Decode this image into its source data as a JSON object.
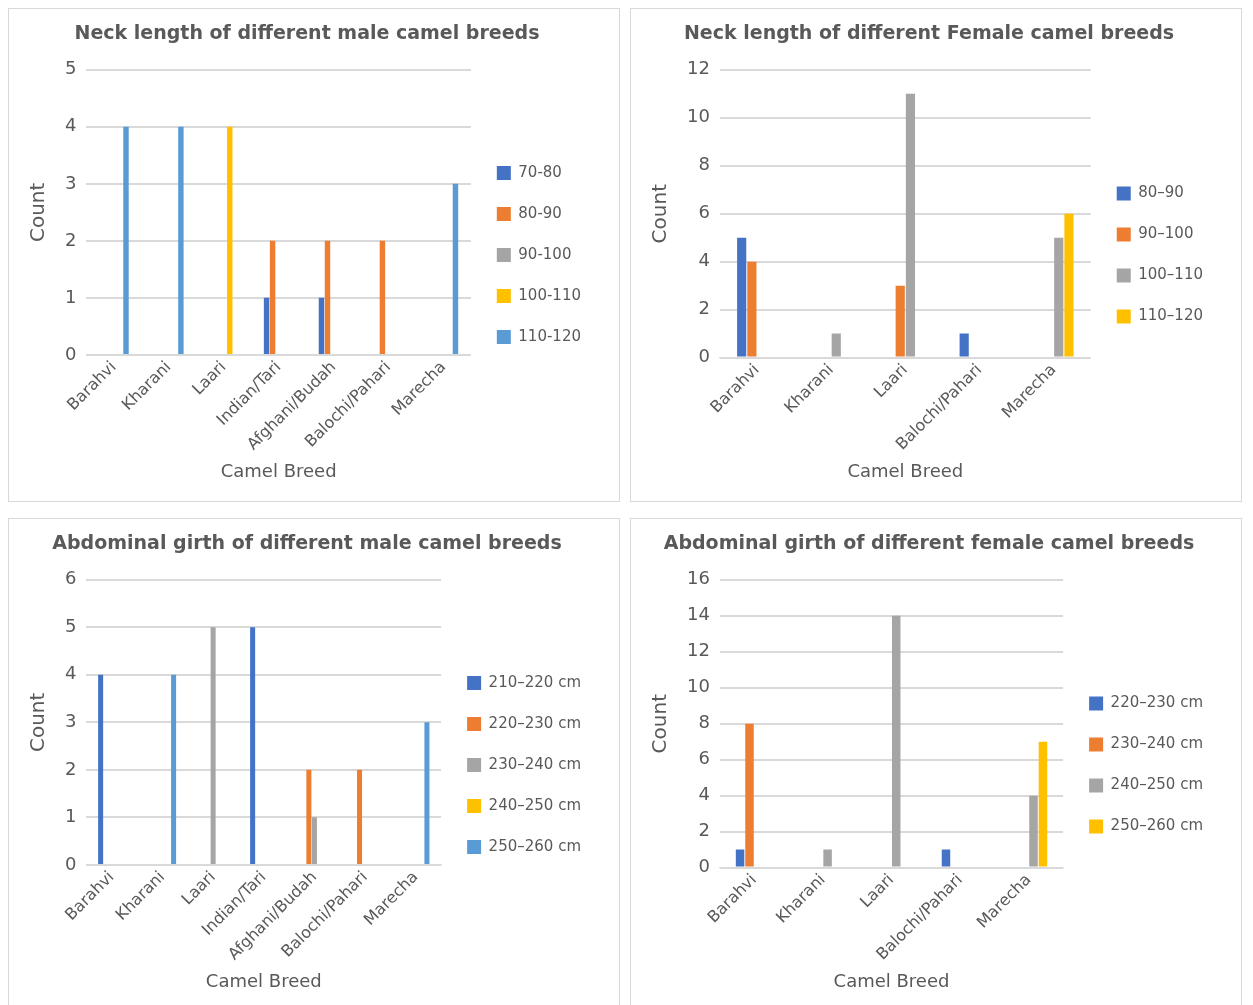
{
  "chart_data": [
    {
      "type": "bar",
      "title": "Neck length of different male camel breeds",
      "xlabel": "Camel Breed",
      "ylabel": "Count",
      "categories": [
        "Barahvi",
        "Kharani",
        "Laari",
        "Indian/Tari",
        "Afghani/Budah",
        "Balochi/Pahari",
        "Marecha"
      ],
      "ylim": [
        0,
        5
      ],
      "yticks": [
        0,
        1,
        2,
        3,
        4,
        5
      ],
      "grid": "y",
      "legend": "right",
      "series": [
        {
          "name": "70-80",
          "color": "#4472c4",
          "values": [
            null,
            null,
            null,
            1,
            1,
            null,
            null
          ]
        },
        {
          "name": "80-90",
          "color": "#ed7d31",
          "values": [
            null,
            null,
            null,
            2,
            2,
            2,
            null
          ]
        },
        {
          "name": "90-100",
          "color": "#a5a5a5",
          "values": [
            null,
            null,
            null,
            null,
            null,
            null,
            null
          ]
        },
        {
          "name": "100-110",
          "color": "#ffc000",
          "values": [
            null,
            null,
            4,
            null,
            null,
            null,
            null
          ]
        },
        {
          "name": "110-120",
          "color": "#5b9bd5",
          "values": [
            4,
            4,
            null,
            null,
            null,
            null,
            3
          ]
        }
      ]
    },
    {
      "type": "bar",
      "title": "Neck length of different Female camel breeds",
      "xlabel": "Camel Breed",
      "ylabel": "Count",
      "categories": [
        "Barahvi",
        "Kharani",
        "Laari",
        "Balochi/Pahari",
        "Marecha"
      ],
      "ylim": [
        0,
        12
      ],
      "yticks": [
        0,
        2,
        4,
        6,
        8,
        10,
        12
      ],
      "grid": "y",
      "legend": "right",
      "series": [
        {
          "name": "80–90",
          "color": "#4472c4",
          "values": [
            5,
            null,
            null,
            1,
            null
          ]
        },
        {
          "name": "90–100",
          "color": "#ed7d31",
          "values": [
            4,
            null,
            3,
            null,
            null
          ]
        },
        {
          "name": "100–110",
          "color": "#a5a5a5",
          "values": [
            null,
            1,
            11,
            null,
            5
          ]
        },
        {
          "name": "110–120",
          "color": "#ffc000",
          "values": [
            null,
            null,
            null,
            null,
            6
          ]
        }
      ]
    },
    {
      "type": "bar",
      "title": "Abdominal girth of different male camel breeds",
      "xlabel": "Camel Breed",
      "ylabel": "Count",
      "categories": [
        "Barahvi",
        "Kharani",
        "Laari",
        "Indian/Tari",
        "Afghani/Budah",
        "Balochi/Pahari",
        "Marecha"
      ],
      "ylim": [
        0,
        6
      ],
      "yticks": [
        0,
        1,
        2,
        3,
        4,
        5,
        6
      ],
      "grid": "y",
      "legend": "right",
      "series": [
        {
          "name": "210–220 cm",
          "color": "#4472c4",
          "values": [
            4,
            null,
            null,
            5,
            null,
            null,
            null
          ]
        },
        {
          "name": "220–230 cm",
          "color": "#ed7d31",
          "values": [
            null,
            null,
            null,
            null,
            2,
            2,
            null
          ]
        },
        {
          "name": "230–240 cm",
          "color": "#a5a5a5",
          "values": [
            null,
            null,
            5,
            null,
            1,
            null,
            null
          ]
        },
        {
          "name": "240–250 cm",
          "color": "#ffc000",
          "values": [
            null,
            null,
            null,
            null,
            null,
            null,
            null
          ]
        },
        {
          "name": "250–260 cm",
          "color": "#5b9bd5",
          "values": [
            null,
            4,
            null,
            null,
            null,
            null,
            3
          ]
        }
      ]
    },
    {
      "type": "bar",
      "title": "Abdominal girth of different female camel breeds",
      "xlabel": "Camel Breed",
      "ylabel": "Count",
      "categories": [
        "Barahvi",
        "Kharani",
        "Laari",
        "Balochi/Pahari",
        "Marecha"
      ],
      "ylim": [
        0,
        16
      ],
      "yticks": [
        0,
        2,
        4,
        6,
        8,
        10,
        12,
        14,
        16
      ],
      "grid": "y",
      "legend": "right",
      "series": [
        {
          "name": "220–230 cm",
          "color": "#4472c4",
          "values": [
            1,
            null,
            null,
            1,
            null
          ]
        },
        {
          "name": "230–240 cm",
          "color": "#ed7d31",
          "values": [
            8,
            null,
            null,
            null,
            null
          ]
        },
        {
          "name": "240–250 cm",
          "color": "#a5a5a5",
          "values": [
            null,
            1,
            14,
            null,
            4
          ]
        },
        {
          "name": "250–260 cm",
          "color": "#ffc000",
          "values": [
            null,
            null,
            null,
            null,
            7
          ]
        }
      ]
    }
  ]
}
